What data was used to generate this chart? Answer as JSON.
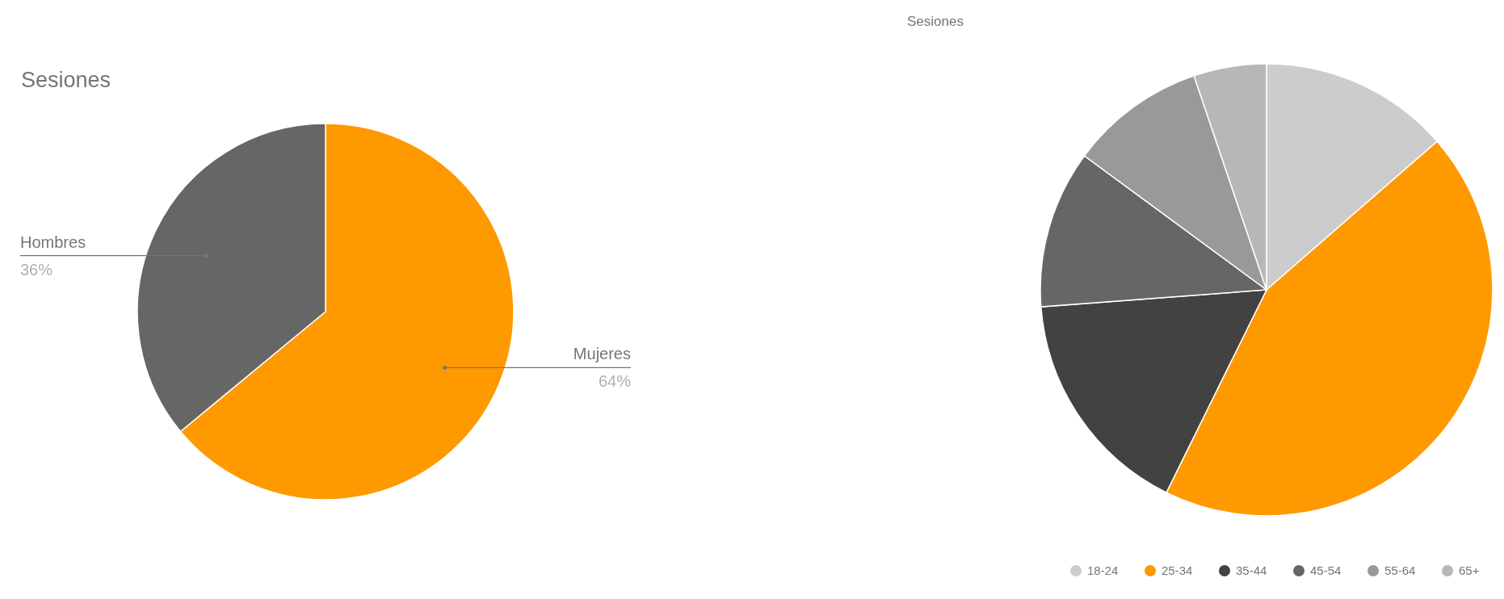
{
  "chart_data": [
    {
      "type": "pie",
      "title": "Sesiones",
      "categories": [
        "Mujeres",
        "Hombres"
      ],
      "values": [
        64,
        36
      ],
      "colors": [
        "#ff9900",
        "#666666"
      ],
      "value_labels": [
        "64%",
        "36%"
      ]
    },
    {
      "type": "pie",
      "title": "Sesiones",
      "categories": [
        "18-24",
        "25-34",
        "35-44",
        "45-54",
        "55-64",
        "65+"
      ],
      "values": [
        13.6,
        43.7,
        16.5,
        11.3,
        9.7,
        5.2
      ],
      "colors": [
        "#cccccc",
        "#ff9900",
        "#424242",
        "#666666",
        "#999999",
        "#b7b7b7"
      ],
      "legend": "bottom"
    }
  ]
}
